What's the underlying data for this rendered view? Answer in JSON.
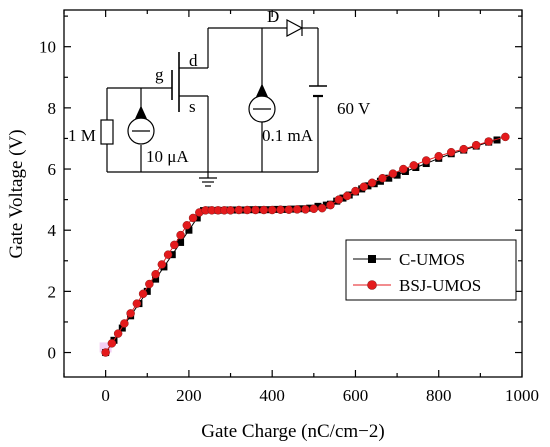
{
  "chart_data": {
    "type": "line",
    "xlabel": "Gate Charge (nC/cm−2)",
    "ylabel": "Gate Voltage (V)",
    "xlim": [
      -100,
      1000
    ],
    "ylim": [
      -0.8,
      11.2
    ],
    "x_ticks": [
      0,
      200,
      400,
      600,
      800,
      1000
    ],
    "x_tick_labels": [
      "0",
      "200",
      "400",
      "600",
      "800",
      "1000"
    ],
    "y_ticks": [
      0,
      2,
      4,
      6,
      8,
      10
    ],
    "y_tick_labels": [
      "0",
      "2",
      "4",
      "6",
      "8",
      "10"
    ],
    "grid": false,
    "legend_position": "right",
    "series": [
      {
        "name": "C-UMOS",
        "color": "#000000",
        "marker": "square",
        "x": [
          0,
          20,
          40,
          60,
          80,
          100,
          120,
          140,
          160,
          180,
          200,
          220,
          235,
          250,
          270,
          290,
          310,
          330,
          350,
          370,
          390,
          410,
          430,
          450,
          470,
          490,
          510,
          530,
          540,
          555,
          570,
          585,
          600,
          615,
          630,
          645,
          660,
          680,
          700,
          720,
          745,
          770,
          800,
          830,
          860,
          890,
          920,
          940
        ],
        "y": [
          0.0,
          0.4,
          0.8,
          1.2,
          1.6,
          2.0,
          2.4,
          2.8,
          3.2,
          3.6,
          4.0,
          4.4,
          4.64,
          4.66,
          4.65,
          4.66,
          4.66,
          4.66,
          4.67,
          4.67,
          4.67,
          4.68,
          4.68,
          4.69,
          4.7,
          4.72,
          4.78,
          4.82,
          4.85,
          4.95,
          5.05,
          5.15,
          5.25,
          5.35,
          5.45,
          5.52,
          5.6,
          5.7,
          5.8,
          5.92,
          6.05,
          6.18,
          6.35,
          6.5,
          6.62,
          6.75,
          6.88,
          6.95
        ]
      },
      {
        "name": "BSJ-UMOS",
        "color": "#e41a1c",
        "marker": "circle",
        "x": [
          0,
          15,
          30,
          45,
          60,
          75,
          90,
          105,
          120,
          135,
          150,
          165,
          180,
          195,
          210,
          225,
          240,
          255,
          270,
          285,
          300,
          320,
          340,
          360,
          380,
          400,
          420,
          440,
          460,
          480,
          500,
          520,
          540,
          560,
          580,
          600,
          620,
          640,
          665,
          690,
          715,
          740,
          770,
          800,
          830,
          860,
          890,
          920,
          960
        ],
        "y": [
          0.0,
          0.3,
          0.62,
          0.95,
          1.28,
          1.6,
          1.92,
          2.24,
          2.56,
          2.88,
          3.2,
          3.52,
          3.84,
          4.16,
          4.4,
          4.58,
          4.65,
          4.65,
          4.65,
          4.65,
          4.65,
          4.66,
          4.66,
          4.66,
          4.66,
          4.66,
          4.67,
          4.67,
          4.68,
          4.68,
          4.7,
          4.72,
          4.82,
          5.0,
          5.12,
          5.28,
          5.42,
          5.55,
          5.7,
          5.85,
          6.0,
          6.12,
          6.28,
          6.42,
          6.55,
          6.65,
          6.78,
          6.9,
          7.05
        ]
      }
    ]
  },
  "inset": {
    "labels": {
      "diode": "D",
      "gate": "g",
      "drain": "d",
      "source": "s",
      "resistor": "1 M",
      "source_current_left": "10 μA",
      "source_current_right": "0.1 mA",
      "voltage": "60 V"
    }
  }
}
